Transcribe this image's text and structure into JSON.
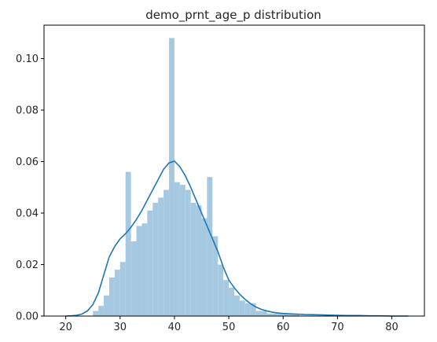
{
  "chart_data": {
    "type": "bar",
    "title": "demo_prnt_age_p distribution",
    "xlabel": "",
    "ylabel": "",
    "xlim": [
      16,
      86
    ],
    "ylim": [
      0,
      0.113
    ],
    "x_ticks": [
      20,
      30,
      40,
      50,
      60,
      70,
      80
    ],
    "y_ticks": [
      0.0,
      0.02,
      0.04,
      0.06,
      0.08,
      0.1
    ],
    "x_tick_labels": [
      "20",
      "30",
      "40",
      "50",
      "60",
      "70",
      "80"
    ],
    "y_tick_labels": [
      "0.00",
      "0.02",
      "0.04",
      "0.06",
      "0.08",
      "0.10"
    ],
    "grid": false,
    "series": [
      {
        "kind": "histogram",
        "color": "#a6c9e2",
        "bin_start": 21,
        "bin_width": 1.0,
        "values": [
          0.0,
          0.0,
          0.0,
          0.0,
          0.002,
          0.004,
          0.008,
          0.015,
          0.018,
          0.021,
          0.056,
          0.029,
          0.035,
          0.036,
          0.041,
          0.044,
          0.046,
          0.049,
          0.108,
          0.052,
          0.051,
          0.049,
          0.044,
          0.043,
          0.038,
          0.054,
          0.031,
          0.02,
          0.014,
          0.011,
          0.008,
          0.006,
          0.005,
          0.005,
          0.002,
          0.002,
          0.001,
          0.001,
          0.001,
          0.001,
          0.001,
          0.001,
          0.0,
          0.0,
          0.0,
          0.0,
          0.0,
          0.0,
          0.0,
          0.0,
          0.0,
          0.0,
          0.0,
          0.0,
          0.0,
          0.0,
          0.0,
          0.0,
          0.0,
          0.0,
          0.0
        ]
      },
      {
        "kind": "kde",
        "color": "#1f77b4",
        "x": [
          20,
          21,
          22,
          23,
          24,
          25,
          26,
          27,
          28,
          29,
          30,
          31,
          32,
          33,
          34,
          35,
          36,
          37,
          38,
          39,
          40,
          41,
          42,
          43,
          44,
          45,
          46,
          47,
          48,
          49,
          50,
          51,
          52,
          53,
          54,
          55,
          56,
          57,
          58,
          59,
          60,
          62,
          64,
          66,
          68,
          70,
          72,
          74,
          76,
          78,
          80,
          83
        ],
        "y": [
          0.0,
          0.0001,
          0.0003,
          0.0008,
          0.002,
          0.0045,
          0.009,
          0.016,
          0.023,
          0.027,
          0.03,
          0.032,
          0.0345,
          0.0375,
          0.041,
          0.045,
          0.049,
          0.053,
          0.057,
          0.0595,
          0.0602,
          0.058,
          0.0545,
          0.05,
          0.045,
          0.04,
          0.035,
          0.03,
          0.025,
          0.019,
          0.014,
          0.011,
          0.0085,
          0.0065,
          0.0048,
          0.0035,
          0.0026,
          0.002,
          0.0015,
          0.0012,
          0.001,
          0.0008,
          0.0006,
          0.0005,
          0.0004,
          0.0003,
          0.0002,
          0.0002,
          0.0001,
          0.0001,
          0.0,
          0.0
        ]
      }
    ]
  }
}
